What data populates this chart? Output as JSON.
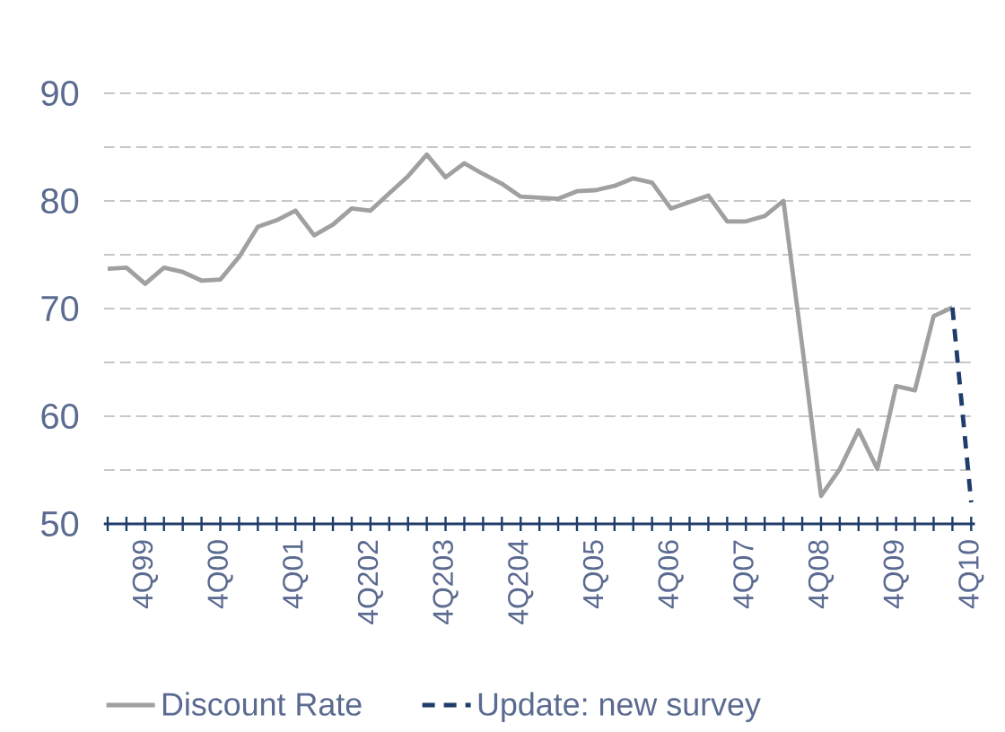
{
  "chart_data": {
    "type": "line",
    "categories": [
      null,
      null,
      "4Q99",
      null,
      null,
      null,
      "4Q00",
      null,
      null,
      null,
      "4Q01",
      null,
      null,
      null,
      "4Q202",
      null,
      null,
      null,
      "4Q203",
      null,
      null,
      null,
      "4Q204",
      null,
      null,
      null,
      "4Q05",
      null,
      null,
      null,
      "4Q06",
      null,
      null,
      null,
      "4Q07",
      null,
      null,
      null,
      "4Q08",
      null,
      null,
      null,
      "4Q09",
      null,
      null,
      null,
      "4Q10"
    ],
    "series": [
      {
        "name": "Discount Rate",
        "color": "#a0a0a0",
        "values": [
          73.7,
          73.8,
          72.3,
          73.8,
          73.4,
          72.6,
          72.7,
          74.8,
          77.6,
          78.2,
          79.1,
          76.8,
          77.8,
          79.3,
          79.1,
          80.7,
          82.3,
          84.3,
          82.2,
          83.5,
          82.5,
          81.6,
          80.4,
          80.3,
          80.2,
          80.9,
          81.0,
          81.4,
          82.1,
          81.7,
          79.3,
          79.9,
          80.5,
          78.1,
          78.1,
          78.6,
          80.0,
          66.5,
          52.6,
          55.1,
          58.7,
          55.1,
          62.8,
          62.4,
          69.3,
          70.1,
          null
        ]
      },
      {
        "name": "Update: new survey",
        "color": "#1f3d6b",
        "line_style": "dashed",
        "values": [
          null,
          null,
          null,
          null,
          null,
          null,
          null,
          null,
          null,
          null,
          null,
          null,
          null,
          null,
          null,
          null,
          null,
          null,
          null,
          null,
          null,
          null,
          null,
          null,
          null,
          null,
          null,
          null,
          null,
          null,
          null,
          null,
          null,
          null,
          null,
          null,
          null,
          null,
          null,
          null,
          null,
          null,
          null,
          null,
          null,
          70.1,
          52.0
        ]
      }
    ],
    "ylim": [
      50,
      90
    ],
    "yticks": [
      50,
      {
        "value": 55,
        "label": null
      },
      60,
      {
        "value": 65,
        "label": null
      },
      70,
      {
        "value": 75,
        "label": null
      },
      80,
      {
        "value": 85,
        "label": null
      },
      90
    ],
    "grid": "y",
    "legend": "bottom"
  }
}
